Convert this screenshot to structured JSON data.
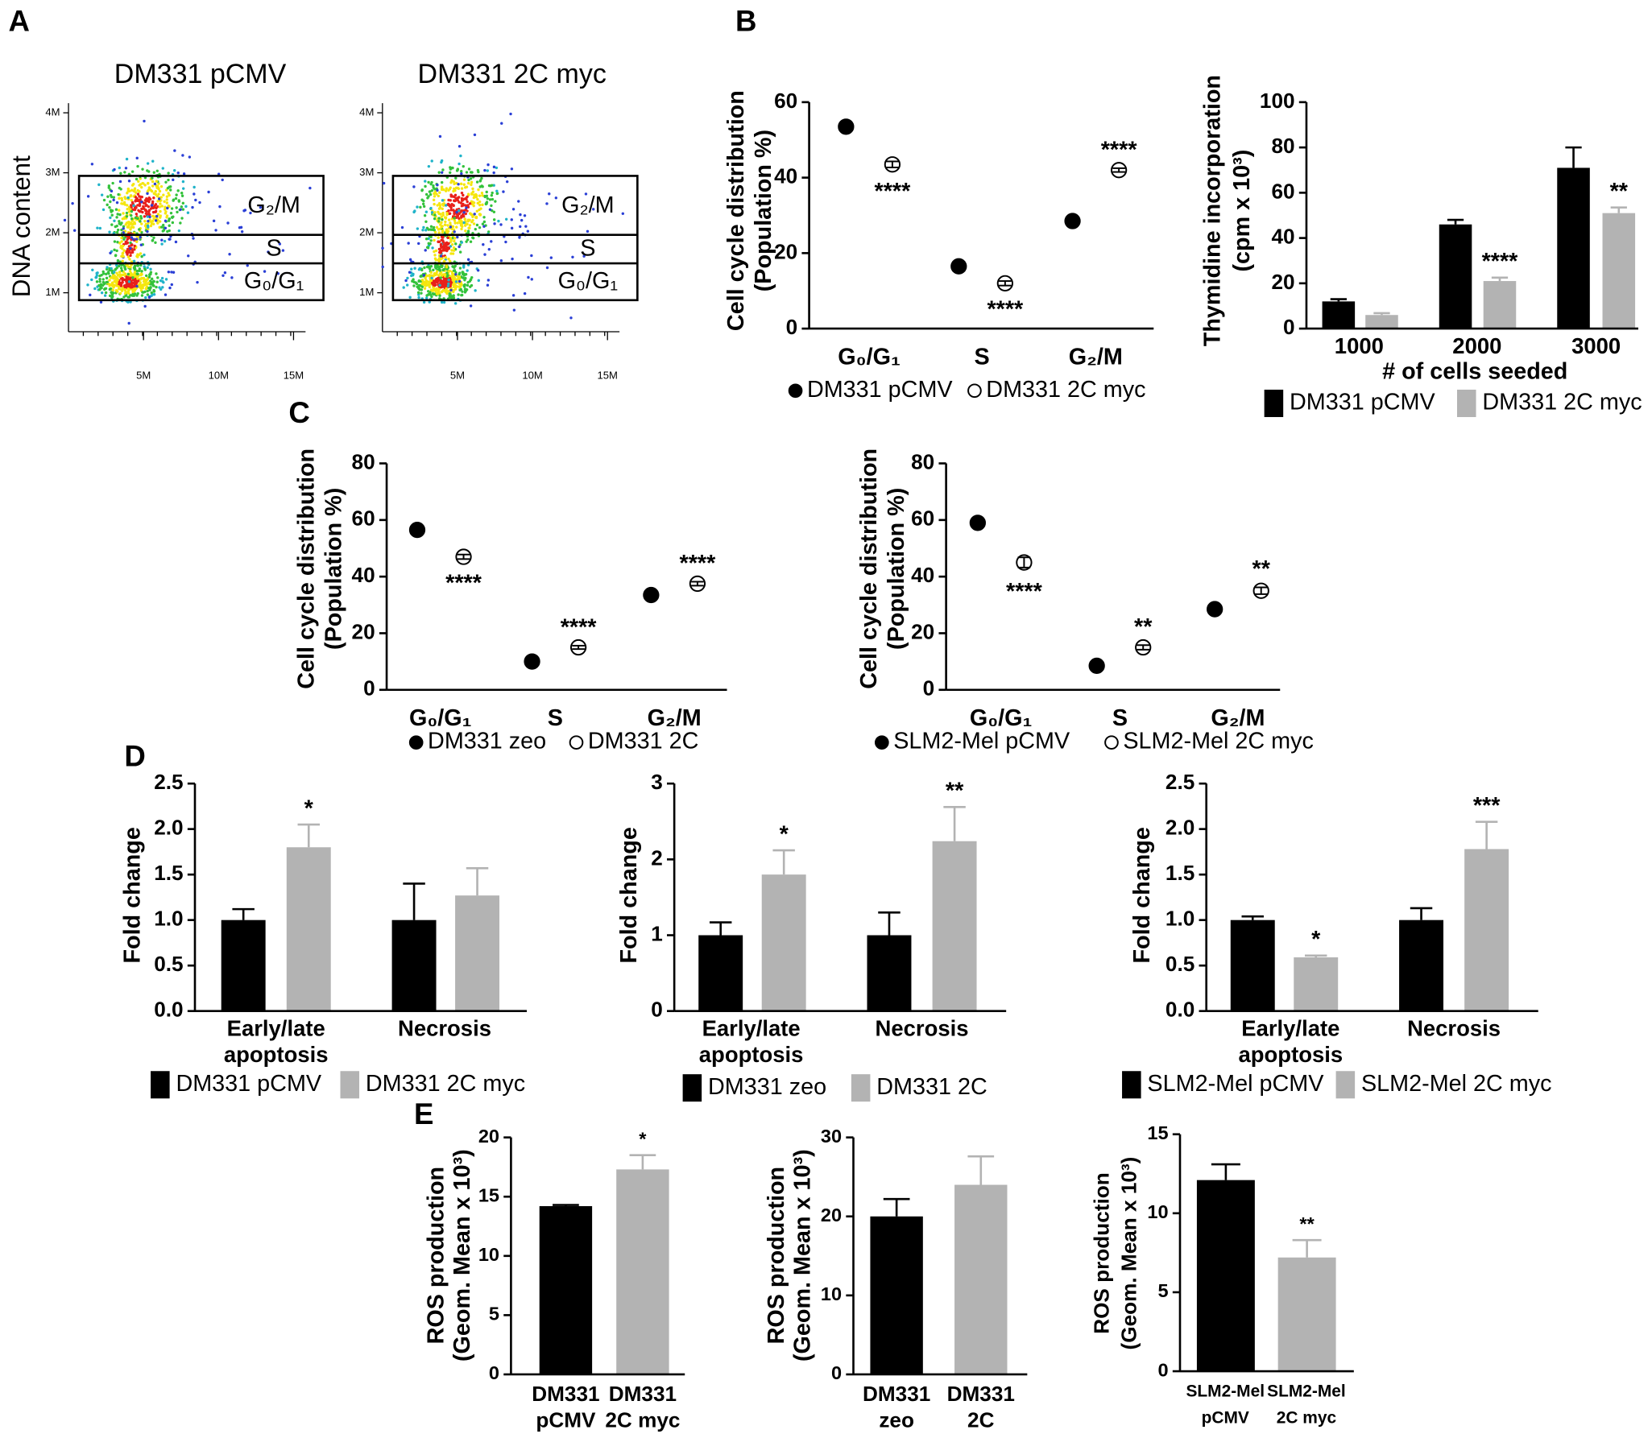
{
  "panel_labels": [
    "A",
    "B",
    "C",
    "D",
    "E"
  ],
  "chart_data": [
    {
      "type": "flow",
      "title": "DM331 pCMV",
      "ylabel": "DNA content",
      "gates": [
        "G₂/M",
        "S",
        "G₀/G₁"
      ],
      "xlim": [
        0,
        15800000
      ],
      "xticks": [
        {
          "value": 5000000,
          "label": "5M"
        },
        {
          "value": 10000000,
          "label": "10M"
        },
        {
          "value": 15000000,
          "label": "15M"
        }
      ],
      "ylim": [
        350000,
        4160000
      ],
      "yticks": [
        {
          "value": 1000000,
          "label": "1M"
        },
        {
          "value": 2000000,
          "label": "2M"
        },
        {
          "value": 3000000,
          "label": "3M"
        },
        {
          "value": 4000000,
          "label": "4M"
        }
      ]
    },
    {
      "type": "flow",
      "title": "DM331 2C myc",
      "gates": [
        "G₂/M",
        "S",
        "G₀/G₁"
      ],
      "xlim": [
        0,
        15800000
      ],
      "xticks": [
        {
          "value": 5000000,
          "label": "5M"
        },
        {
          "value": 10000000,
          "label": "10M"
        },
        {
          "value": 15000000,
          "label": "15M"
        }
      ],
      "ylim": [
        350000,
        4160000
      ],
      "yticks": [
        {
          "value": 1000000,
          "label": "1M"
        },
        {
          "value": 2000000,
          "label": "2M"
        },
        {
          "value": 3000000,
          "label": "3M"
        },
        {
          "value": 4000000,
          "label": "4M"
        }
      ]
    },
    {
      "type": "dot",
      "ylabel": [
        "Cell cycle distribution",
        "(Population %)"
      ],
      "categories": [
        "G₀/G₁",
        "S",
        "G₂/M"
      ],
      "ylim": [
        0,
        60
      ],
      "yticks": [
        0,
        20,
        40,
        60
      ],
      "series": [
        {
          "name": "DM331 pCMV",
          "marker": "filled",
          "color": "#000000",
          "values": [
            53.5,
            16.5,
            28.5
          ],
          "errors": [
            0.5,
            1.2,
            0.6
          ]
        },
        {
          "name": "DM331 2C myc",
          "marker": "open",
          "color": "#000000",
          "values": [
            43.5,
            12,
            42
          ],
          "errors": [
            0.8,
            0.6,
            0.5
          ],
          "annotations": [
            "****",
            "****",
            "****"
          ]
        }
      ]
    },
    {
      "type": "bar",
      "ylabel": [
        "Thymidine incorporation",
        "(cpm x 10³)"
      ],
      "xlabel": "# of cells seeded",
      "categories": [
        "1000",
        "2000",
        "3000"
      ],
      "ylim": [
        0,
        100
      ],
      "yticks": [
        0,
        20,
        40,
        60,
        80,
        100
      ],
      "series": [
        {
          "name": "DM331 pCMV",
          "color": "#000000",
          "values": [
            12,
            46,
            71
          ],
          "errors": [
            1,
            2,
            9
          ]
        },
        {
          "name": "DM331 2C myc",
          "color": "#b3b3b3",
          "values": [
            6,
            21,
            51
          ],
          "errors": [
            0.8,
            1.5,
            2.5
          ],
          "annotations": [
            null,
            "****",
            "**"
          ]
        }
      ]
    },
    {
      "type": "dot",
      "ylabel": [
        "Cell cycle distribution",
        "(Population %)"
      ],
      "categories": [
        "G₀/G₁",
        "S",
        "G₂/M"
      ],
      "ylim": [
        0,
        80
      ],
      "yticks": [
        0,
        20,
        40,
        60,
        80
      ],
      "series": [
        {
          "name": "DM331 zeo",
          "marker": "filled",
          "color": "#000000",
          "values": [
            56.5,
            10,
            33.5
          ],
          "errors": [
            0.5,
            0.6,
            0.6
          ]
        },
        {
          "name": "DM331 2C",
          "marker": "open",
          "color": "#000000",
          "values": [
            47,
            15,
            37.5
          ],
          "errors": [
            0.8,
            0.6,
            0.7
          ],
          "annotations": [
            "****",
            "****",
            "****"
          ]
        }
      ]
    },
    {
      "type": "dot",
      "ylabel": [
        "Cell cycle distribution",
        "(Population %)"
      ],
      "categories": [
        "G₀/G₁",
        "S",
        "G₂/M"
      ],
      "ylim": [
        0,
        80
      ],
      "yticks": [
        0,
        20,
        40,
        60,
        80
      ],
      "series": [
        {
          "name": "SLM2-Mel pCMV",
          "marker": "filled",
          "color": "#000000",
          "values": [
            59,
            8.5,
            28.5
          ],
          "errors": [
            0.6,
            0.4,
            0.5
          ]
        },
        {
          "name": "SLM2-Mel 2C myc",
          "marker": "open",
          "color": "#000000",
          "values": [
            45,
            15,
            35
          ],
          "errors": [
            1.8,
            0.8,
            1.2
          ],
          "annotations": [
            "****",
            "**",
            "**"
          ]
        }
      ]
    },
    {
      "type": "bar",
      "ylabel": "Fold change",
      "categories": [
        [
          "Early/late",
          "apoptosis"
        ],
        [
          "Necrosis"
        ]
      ],
      "ylim": [
        0,
        2.5
      ],
      "yticks": [
        {
          "value": 0,
          "label": "0.0"
        },
        0.5,
        {
          "value": 1,
          "label": "1.0"
        },
        1.5,
        {
          "value": 2,
          "label": "2.0"
        },
        2.5
      ],
      "series": [
        {
          "name": "DM331 pCMV",
          "color": "#000000",
          "values": [
            1,
            1
          ],
          "errors": [
            0.12,
            0.4
          ]
        },
        {
          "name": "DM331 2C myc",
          "color": "#b3b3b3",
          "values": [
            1.8,
            1.27
          ],
          "errors": [
            0.25,
            0.3
          ],
          "annotations": [
            "*",
            null
          ]
        }
      ]
    },
    {
      "type": "bar",
      "ylabel": "Fold change",
      "categories": [
        [
          "Early/late",
          "apoptosis"
        ],
        [
          "Necrosis"
        ]
      ],
      "ylim": [
        0,
        3
      ],
      "yticks": [
        0,
        1,
        2,
        3
      ],
      "series": [
        {
          "name": "DM331 zeo",
          "color": "#000000",
          "values": [
            1,
            1
          ],
          "errors": [
            0.17,
            0.3
          ]
        },
        {
          "name": "DM331 2C",
          "color": "#b3b3b3",
          "values": [
            1.8,
            2.24
          ],
          "errors": [
            0.32,
            0.45
          ],
          "annotations": [
            "*",
            "**"
          ]
        }
      ]
    },
    {
      "type": "bar",
      "ylabel": "Fold change",
      "categories": [
        [
          "Early/late",
          "apoptosis"
        ],
        [
          "Necrosis"
        ]
      ],
      "ylim": [
        0,
        2.5
      ],
      "yticks": [
        {
          "value": 0,
          "label": "0.0"
        },
        0.5,
        {
          "value": 1,
          "label": "1.0"
        },
        1.5,
        {
          "value": 2,
          "label": "2.0"
        },
        2.5
      ],
      "series": [
        {
          "name": "SLM2-Mel pCMV",
          "color": "#000000",
          "values": [
            1,
            1
          ],
          "errors": [
            0.04,
            0.13
          ]
        },
        {
          "name": "SLM2-Mel 2C myc",
          "color": "#b3b3b3",
          "values": [
            0.59,
            1.78
          ],
          "errors": [
            0.02,
            0.3
          ],
          "annotations": [
            "*",
            "***"
          ]
        }
      ]
    },
    {
      "type": "bar",
      "ylabel": [
        "ROS production",
        "(Geom. Mean x 10³)"
      ],
      "categories": [
        [
          "DM331",
          "pCMV"
        ],
        [
          "DM331",
          "2C myc"
        ]
      ],
      "ylim": [
        0,
        20
      ],
      "yticks": [
        0,
        5,
        10,
        15,
        20
      ],
      "values": [
        14.2,
        17.3
      ],
      "errors": [
        0.1,
        1.2
      ],
      "colors": [
        "#000000",
        "#b3b3b3"
      ],
      "annotations": [
        null,
        "*"
      ]
    },
    {
      "type": "bar",
      "ylabel": [
        "ROS production",
        "(Geom. Mean x 10³)"
      ],
      "categories": [
        [
          "DM331",
          "zeo"
        ],
        [
          "DM331",
          "2C"
        ]
      ],
      "ylim": [
        0,
        30
      ],
      "yticks": [
        0,
        10,
        20,
        30
      ],
      "values": [
        20,
        24
      ],
      "errors": [
        2.2,
        3.6
      ],
      "colors": [
        "#000000",
        "#b3b3b3"
      ]
    },
    {
      "type": "bar",
      "ylabel": [
        "ROS production",
        "(Geom. Mean x 10³)"
      ],
      "categories": [
        [
          "SLM2-Mel",
          "pCMV"
        ],
        [
          "SLM2-Mel",
          "2C myc"
        ]
      ],
      "ylim": [
        0,
        15
      ],
      "yticks": [
        0,
        5,
        10,
        15
      ],
      "values": [
        12.1,
        7.2
      ],
      "errors": [
        1,
        1.1
      ],
      "colors": [
        "#000000",
        "#b3b3b3"
      ],
      "annotations": [
        null,
        "**"
      ]
    }
  ]
}
